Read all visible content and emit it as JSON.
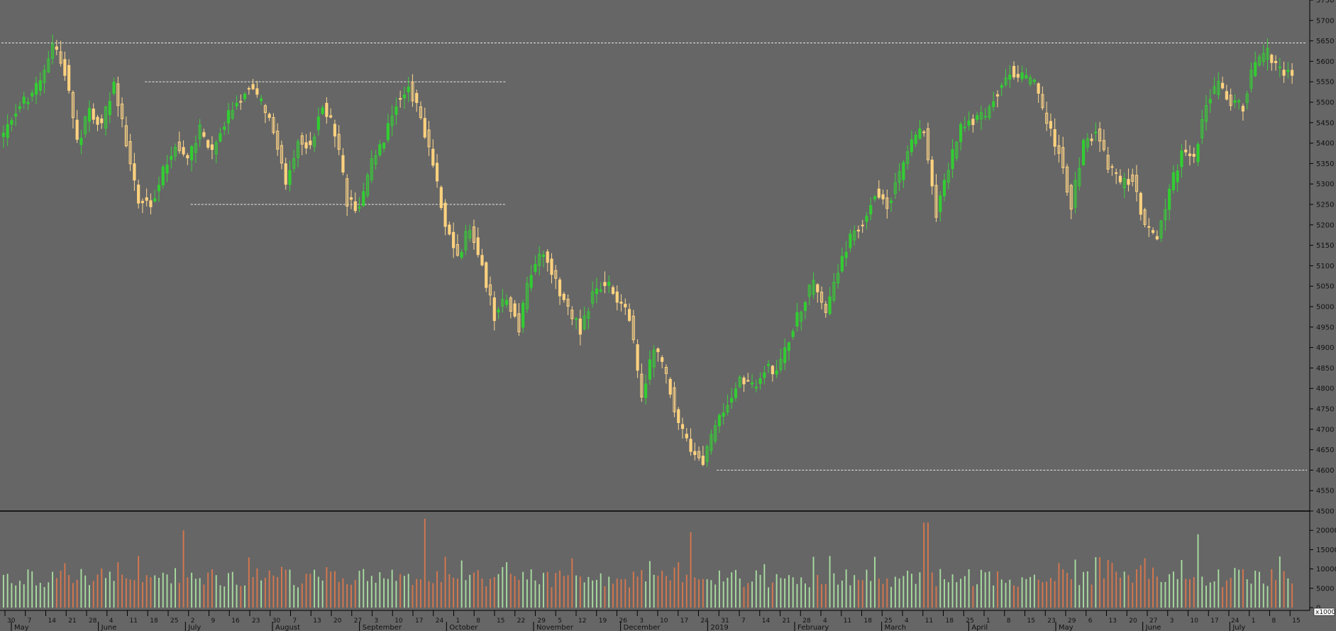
{
  "chart_data": {
    "type": "candlestick",
    "grid": false,
    "price_axis": {
      "position": "right",
      "min": 4500,
      "max": 5750,
      "ticks": [
        "5750",
        "5700",
        "5650",
        "5600",
        "5550",
        "5500",
        "5450",
        "5400",
        "5350",
        "5300",
        "5250",
        "5200",
        "5150",
        "5100",
        "5050",
        "5000",
        "4950",
        "4900",
        "4850",
        "4800",
        "4750",
        "4700",
        "4650",
        "4600",
        "4550",
        "4500"
      ]
    },
    "volume_axis": {
      "position": "right",
      "min": 0,
      "max": 25000,
      "ticks": [
        "20000",
        "15000",
        "10000",
        "5000",
        "0"
      ],
      "unit_label": "x1000"
    },
    "date_ticks": [
      "30",
      "7",
      "14",
      "21",
      "28",
      "4",
      "11",
      "18",
      "25",
      "2",
      "9",
      "16",
      "23",
      "30",
      "7",
      "13",
      "20",
      "27",
      "3",
      "10",
      "17",
      "24",
      "1",
      "8",
      "15",
      "22",
      "29",
      "5",
      "12",
      "19",
      "26",
      "3",
      "10",
      "17",
      "24",
      "31",
      "7",
      "14",
      "21",
      "28",
      "4",
      "11",
      "18",
      "25",
      "4",
      "11",
      "18",
      "25",
      "1",
      "8",
      "15",
      "23",
      "29",
      "6",
      "13",
      "20",
      "27",
      "3",
      "10",
      "17",
      "24",
      "1",
      "8",
      "15"
    ],
    "month_labels": [
      "May",
      "June",
      "July",
      "August",
      "September",
      "October",
      "November",
      "December",
      "2019",
      "February",
      "March",
      "April",
      "May",
      "June",
      "July"
    ],
    "reference_lines": [
      {
        "name": "high-2018",
        "value": 5645,
        "from": 0,
        "to": 1
      },
      {
        "name": "range-top",
        "value": 5550,
        "from": 0.11,
        "to": 0.386
      },
      {
        "name": "range-bottom",
        "value": 5250,
        "from": 0.145,
        "to": 0.386
      },
      {
        "name": "low-dec",
        "value": 4600,
        "from": 0.548,
        "to": 1
      }
    ],
    "anchors": [
      [
        5420,
        "flat"
      ],
      [
        5480,
        "flat"
      ],
      [
        5510,
        "flat"
      ],
      [
        5550,
        "flat"
      ],
      [
        5645,
        "flat"
      ],
      [
        5580,
        "down"
      ],
      [
        5400,
        "down"
      ],
      [
        5480,
        "flat"
      ],
      [
        5440,
        "down"
      ],
      [
        5550,
        "flat"
      ],
      [
        5400,
        "down"
      ],
      [
        5260,
        "down"
      ],
      [
        5250,
        "flat"
      ],
      [
        5330,
        "flat"
      ],
      [
        5400,
        "flat"
      ],
      [
        5360,
        "flat"
      ],
      [
        5430,
        "flat"
      ],
      [
        5370,
        "flat"
      ],
      [
        5450,
        "flat"
      ],
      [
        5500,
        "flat"
      ],
      [
        5540,
        "flat"
      ],
      [
        5500,
        "flat"
      ],
      [
        5430,
        "down"
      ],
      [
        5300,
        "down"
      ],
      [
        5410,
        "flat"
      ],
      [
        5390,
        "flat"
      ],
      [
        5500,
        "flat"
      ],
      [
        5430,
        "down"
      ],
      [
        5260,
        "down"
      ],
      [
        5240,
        "flat"
      ],
      [
        5350,
        "flat"
      ],
      [
        5400,
        "flat"
      ],
      [
        5500,
        "flat"
      ],
      [
        5540,
        "flat"
      ],
      [
        5460,
        "down"
      ],
      [
        5350,
        "down"
      ],
      [
        5200,
        "down"
      ],
      [
        5120,
        "down"
      ],
      [
        5200,
        "flat"
      ],
      [
        5100,
        "down"
      ],
      [
        4980,
        "down"
      ],
      [
        5030,
        "flat"
      ],
      [
        4950,
        "down"
      ],
      [
        5090,
        "flat"
      ],
      [
        5140,
        "flat"
      ],
      [
        5060,
        "down"
      ],
      [
        5000,
        "down"
      ],
      [
        4940,
        "down"
      ],
      [
        5030,
        "flat"
      ],
      [
        5060,
        "flat"
      ],
      [
        5020,
        "flat"
      ],
      [
        4970,
        "down"
      ],
      [
        4780,
        "down"
      ],
      [
        4900,
        "flat"
      ],
      [
        4830,
        "down"
      ],
      [
        4720,
        "down"
      ],
      [
        4650,
        "down"
      ],
      [
        4620,
        "down"
      ],
      [
        4700,
        "flat"
      ],
      [
        4770,
        "flat"
      ],
      [
        4820,
        "flat"
      ],
      [
        4800,
        "flat"
      ],
      [
        4850,
        "flat"
      ],
      [
        4840,
        "flat"
      ],
      [
        4920,
        "flat"
      ],
      [
        5000,
        "flat"
      ],
      [
        5060,
        "flat"
      ],
      [
        4990,
        "down"
      ],
      [
        5080,
        "flat"
      ],
      [
        5170,
        "flat"
      ],
      [
        5210,
        "flat"
      ],
      [
        5280,
        "flat"
      ],
      [
        5250,
        "flat"
      ],
      [
        5320,
        "flat"
      ],
      [
        5400,
        "flat"
      ],
      [
        5430,
        "flat"
      ],
      [
        5230,
        "down"
      ],
      [
        5340,
        "flat"
      ],
      [
        5440,
        "flat"
      ],
      [
        5460,
        "flat"
      ],
      [
        5470,
        "flat"
      ],
      [
        5530,
        "flat"
      ],
      [
        5580,
        "flat"
      ],
      [
        5560,
        "flat"
      ],
      [
        5540,
        "down"
      ],
      [
        5450,
        "down"
      ],
      [
        5380,
        "down"
      ],
      [
        5250,
        "down"
      ],
      [
        5400,
        "flat"
      ],
      [
        5430,
        "flat"
      ],
      [
        5340,
        "down"
      ],
      [
        5300,
        "down"
      ],
      [
        5320,
        "flat"
      ],
      [
        5200,
        "down"
      ],
      [
        5170,
        "flat"
      ],
      [
        5280,
        "flat"
      ],
      [
        5380,
        "flat"
      ],
      [
        5360,
        "flat"
      ],
      [
        5500,
        "flat"
      ],
      [
        5540,
        "flat"
      ],
      [
        5500,
        "flat"
      ],
      [
        5490,
        "flat"
      ],
      [
        5600,
        "flat"
      ],
      [
        5620,
        "flat"
      ],
      [
        5580,
        "flat"
      ],
      [
        5570,
        "down"
      ]
    ],
    "volume_profile": {
      "typical": 8000,
      "spikes": [
        {
          "position": 0.14,
          "value": 20000
        },
        {
          "position": 0.325,
          "value": 23000
        },
        {
          "position": 0.532,
          "value": 19500
        },
        {
          "position": 0.713,
          "value": 22000
        },
        {
          "position": 0.925,
          "value": 19000
        }
      ]
    },
    "colors": {
      "background": "#666666",
      "bar_up": "#32cd32",
      "bar_down": "#ffd27f",
      "wick_up": "#3cd23c",
      "wick_down": "#ffd98f",
      "volume_up": "#a8dca0",
      "volume_down": "#d6774e",
      "reference": "#e8e8e8",
      "axis": "#000000"
    }
  }
}
